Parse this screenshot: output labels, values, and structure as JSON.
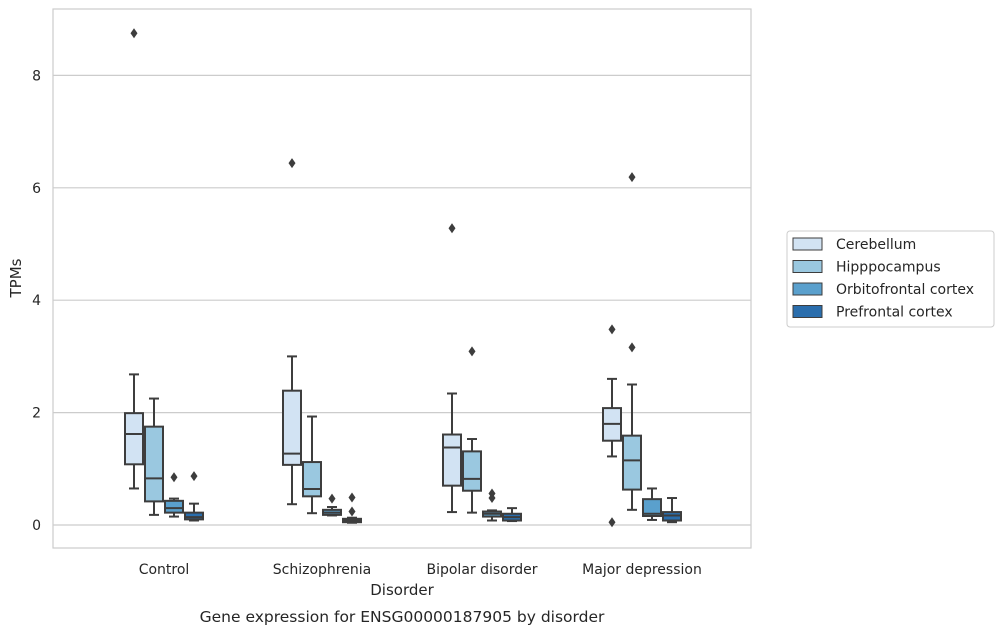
{
  "chart_data": {
    "type": "box",
    "caption": "Gene expression for ENSG00000187905 by disorder",
    "xlabel": "Disorder",
    "ylabel": "TPMs",
    "ylim": [
      -0.4,
      9.25
    ],
    "yticks": [
      0,
      2,
      4,
      6,
      8
    ],
    "grid": true,
    "legend_position": "right",
    "categories": [
      "Control",
      "Schizophrenia",
      "Bipolar disorder",
      "Major depression"
    ],
    "series": [
      {
        "name": "Cerebellum",
        "color": "#d2e3f3",
        "boxes": [
          {
            "whisker_low": 0.65,
            "q1": 1.08,
            "median": 1.62,
            "q3": 1.99,
            "whisker_high": 2.68,
            "outliers": [
              8.75
            ]
          },
          {
            "whisker_low": 0.37,
            "q1": 1.07,
            "median": 1.27,
            "q3": 2.39,
            "whisker_high": 3.0,
            "outliers": [
              6.44
            ]
          },
          {
            "whisker_low": 0.23,
            "q1": 0.7,
            "median": 1.38,
            "q3": 1.61,
            "whisker_high": 2.34,
            "outliers": [
              5.28
            ]
          },
          {
            "whisker_low": 1.22,
            "q1": 1.5,
            "median": 1.8,
            "q3": 2.08,
            "whisker_high": 2.6,
            "outliers": [
              3.48,
              0.05
            ]
          }
        ]
      },
      {
        "name": "Hipppocampus",
        "color": "#9ac8e0",
        "boxes": [
          {
            "whisker_low": 0.18,
            "q1": 0.42,
            "median": 0.83,
            "q3": 1.75,
            "whisker_high": 2.25,
            "outliers": []
          },
          {
            "whisker_low": 0.21,
            "q1": 0.51,
            "median": 0.64,
            "q3": 1.12,
            "whisker_high": 1.93,
            "outliers": []
          },
          {
            "whisker_low": 0.22,
            "q1": 0.61,
            "median": 0.82,
            "q3": 1.31,
            "whisker_high": 1.53,
            "outliers": [
              3.09
            ]
          },
          {
            "whisker_low": 0.27,
            "q1": 0.63,
            "median": 1.15,
            "q3": 1.59,
            "whisker_high": 2.5,
            "outliers": [
              6.19,
              3.16
            ]
          }
        ]
      },
      {
        "name": "Orbitofrontal cortex",
        "color": "#5aa0cd",
        "boxes": [
          {
            "whisker_low": 0.15,
            "q1": 0.22,
            "median": 0.3,
            "q3": 0.43,
            "whisker_high": 0.47,
            "outliers": [
              0.85
            ]
          },
          {
            "whisker_low": 0.17,
            "q1": 0.18,
            "median": 0.22,
            "q3": 0.27,
            "whisker_high": 0.32,
            "outliers": [
              0.47
            ]
          },
          {
            "whisker_low": 0.08,
            "q1": 0.15,
            "median": 0.2,
            "q3": 0.24,
            "whisker_high": 0.26,
            "outliers": [
              0.56,
              0.48
            ]
          },
          {
            "whisker_low": 0.09,
            "q1": 0.16,
            "median": 0.2,
            "q3": 0.46,
            "whisker_high": 0.65,
            "outliers": []
          }
        ]
      },
      {
        "name": "Prefrontal cortex",
        "color": "#2a6ead",
        "boxes": [
          {
            "whisker_low": 0.08,
            "q1": 0.1,
            "median": 0.14,
            "q3": 0.22,
            "whisker_high": 0.38,
            "outliers": [
              0.87
            ]
          },
          {
            "whisker_low": 0.04,
            "q1": 0.05,
            "median": 0.08,
            "q3": 0.11,
            "whisker_high": 0.13,
            "outliers": [
              0.49,
              0.24
            ]
          },
          {
            "whisker_low": 0.07,
            "q1": 0.08,
            "median": 0.14,
            "q3": 0.2,
            "whisker_high": 0.3,
            "outliers": []
          },
          {
            "whisker_low": 0.05,
            "q1": 0.08,
            "median": 0.17,
            "q3": 0.23,
            "whisker_high": 0.48,
            "outliers": []
          }
        ]
      }
    ]
  }
}
